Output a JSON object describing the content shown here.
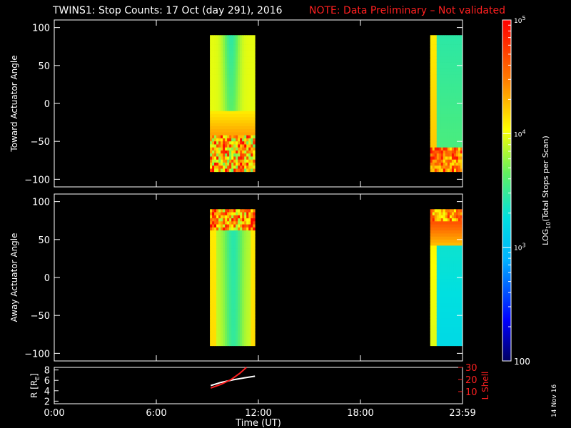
{
  "title": "TWINS1: Stop Counts: 17 Oct (day 291), 2016",
  "note": "NOTE: Data Preliminary – Not validated",
  "datestamp": "14 Nov 16",
  "colors": {
    "background": "#000000",
    "axis": "#ffffff",
    "note": "#ff2020",
    "lshell": "#ff2020",
    "radius": "#ffffff"
  },
  "chart_data": [
    {
      "type": "heatmap",
      "ylabel": "Toward Actuator Angle",
      "ylim": [
        -110,
        110
      ],
      "yticks": [
        100,
        50,
        0,
        -50,
        -100
      ],
      "xlim": [
        0,
        24
      ],
      "data_intervals_ut": [
        [
          9.15,
          11.8
        ],
        [
          22.1,
          24.0
        ]
      ],
      "angle_range": [
        -90,
        90
      ],
      "colorscale": "log"
    },
    {
      "type": "heatmap",
      "ylabel": "Away Actuator Angle",
      "ylim": [
        -110,
        110
      ],
      "yticks": [
        100,
        50,
        0,
        -50,
        -100
      ],
      "xlim": [
        0,
        24
      ],
      "data_intervals_ut": [
        [
          9.15,
          11.8
        ],
        [
          22.1,
          24.0
        ]
      ],
      "angle_range": [
        -90,
        90
      ],
      "colorscale": "log"
    },
    {
      "type": "line",
      "xlabel": "Time (UT)",
      "xlim": [
        0,
        24
      ],
      "xticks": [
        0,
        6,
        12,
        18,
        24
      ],
      "xtick_labels": [
        "0:00",
        "6:00",
        "12:00",
        "18:00",
        "23:59"
      ],
      "ylabel_left": "R [RE]",
      "ylabel_left_text": "R [R",
      "ylabel_left_sub": "E",
      "ylabel_left_close": "]",
      "ylim_left": [
        1.5,
        8.5
      ],
      "yticks_left": [
        2,
        4,
        6,
        8
      ],
      "ylabel_right": "L Shell",
      "ylim_right": [
        0,
        30
      ],
      "yticks_right": [
        10,
        20,
        30
      ],
      "series": [
        {
          "name": "R",
          "axis": "left",
          "color": "#ffffff",
          "x": [
            9.2,
            9.8,
            10.5,
            11.2,
            11.8
          ],
          "y": [
            5.0,
            5.6,
            6.1,
            6.5,
            6.8
          ]
        },
        {
          "name": "L Shell",
          "axis": "right",
          "color": "#ff2020",
          "x": [
            9.2,
            9.8,
            10.4,
            10.9,
            11.3
          ],
          "y": [
            13.0,
            16.0,
            20.0,
            25.0,
            30.0
          ]
        }
      ]
    },
    {
      "type": "colorbar",
      "label_prefix": "LOG",
      "label_sub": "10",
      "label_suffix": "(Total Stops per Scan)",
      "range": [
        100,
        100000
      ],
      "ticks": [
        {
          "value": 100000,
          "base": "10",
          "exp": "5"
        },
        {
          "value": 10000,
          "base": "10",
          "exp": "4"
        },
        {
          "value": 1000,
          "base": "10",
          "exp": "3"
        },
        {
          "value": 100,
          "label": "100"
        }
      ]
    }
  ]
}
